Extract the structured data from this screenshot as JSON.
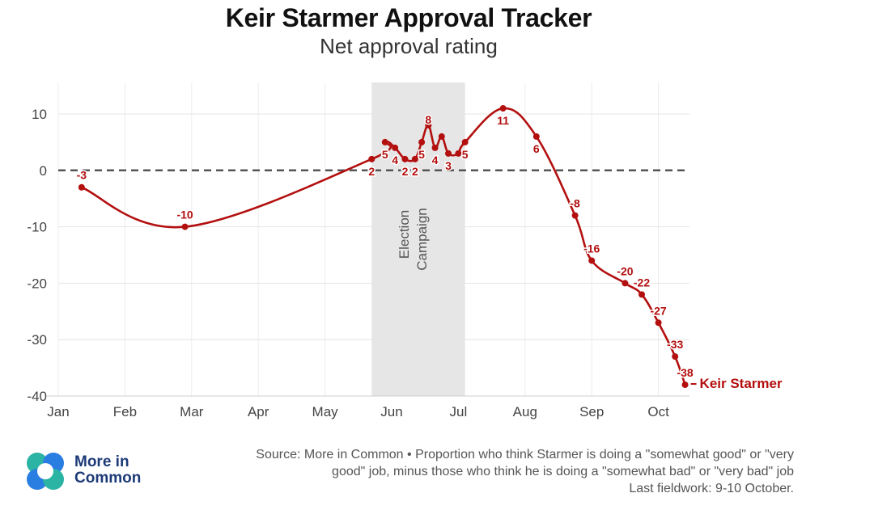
{
  "chart_data": {
    "type": "line",
    "title": "Keir Starmer Approval Tracker",
    "subtitle": "Net approval rating",
    "ylim": [
      -40,
      15
    ],
    "yticks": [
      10,
      0,
      -10,
      -20,
      -30,
      -40
    ],
    "ytick_labels": [
      "10",
      "0",
      "-10",
      "-20",
      "-30",
      "-40"
    ],
    "months": [
      "Jan",
      "Feb",
      "Mar",
      "Apr",
      "May",
      "Jun",
      "Jul",
      "Aug",
      "Sep",
      "Oct"
    ],
    "reference_line": 0,
    "shaded_region": {
      "label_line1": "Election",
      "label_line2": "Campaign",
      "start_month": 4.7,
      "end_month": 6.1
    },
    "series": [
      {
        "name": "Keir Starmer",
        "color": "#b30f0f",
        "points": [
          {
            "m": 0.35,
            "v": -3,
            "label": "-3",
            "lpos": "above"
          },
          {
            "m": 1.9,
            "v": -10,
            "label": "-10",
            "lpos": "above"
          },
          {
            "m": 4.7,
            "v": 2,
            "label": "2",
            "lpos": "below"
          },
          {
            "m": 4.9,
            "v": 5,
            "label": "5",
            "lpos": "below"
          },
          {
            "m": 5.05,
            "v": 4,
            "label": "4",
            "lpos": "below"
          },
          {
            "m": 5.2,
            "v": 2,
            "label": "2",
            "lpos": "below"
          },
          {
            "m": 5.35,
            "v": 2,
            "label": "2",
            "lpos": "below"
          },
          {
            "m": 5.45,
            "v": 5,
            "label": "5",
            "lpos": "below"
          },
          {
            "m": 5.55,
            "v": 8,
            "label": "8",
            "lpos": "inside"
          },
          {
            "m": 5.65,
            "v": 4,
            "label": "4",
            "lpos": "below"
          },
          {
            "m": 5.75,
            "v": 6,
            "label": "",
            "lpos": "none"
          },
          {
            "m": 5.85,
            "v": 3,
            "label": "3",
            "lpos": "below"
          },
          {
            "m": 6.0,
            "v": 3,
            "label": "",
            "lpos": "none"
          },
          {
            "m": 6.1,
            "v": 5,
            "label": "5",
            "lpos": "below"
          },
          {
            "m": 6.67,
            "v": 11,
            "label": "11",
            "lpos": "below"
          },
          {
            "m": 7.17,
            "v": 6,
            "label": "6",
            "lpos": "below"
          },
          {
            "m": 7.75,
            "v": -8,
            "label": "-8",
            "lpos": "above"
          },
          {
            "m": 8.0,
            "v": -16,
            "label": "-16",
            "lpos": "above"
          },
          {
            "m": 8.5,
            "v": -20,
            "label": "-20",
            "lpos": "above"
          },
          {
            "m": 8.75,
            "v": -22,
            "label": "-22",
            "lpos": "above"
          },
          {
            "m": 9.0,
            "v": -27,
            "label": "-27",
            "lpos": "above"
          },
          {
            "m": 9.25,
            "v": -33,
            "label": "-33",
            "lpos": "above"
          },
          {
            "m": 9.4,
            "v": -38,
            "label": "-38",
            "lpos": "above"
          }
        ]
      }
    ],
    "end_label": "Keir Starmer"
  },
  "footer": {
    "brand_line1": "More in",
    "brand_line2": "Common",
    "source_line1": "Source: More in Common • Proportion who think Starmer is doing a \"somewhat good\" or \"very",
    "source_line2": "good\" job, minus those who think he is doing a \"somewhat bad\" or \"very bad\" job",
    "source_line3": "Last fieldwork: 9-10 October."
  }
}
